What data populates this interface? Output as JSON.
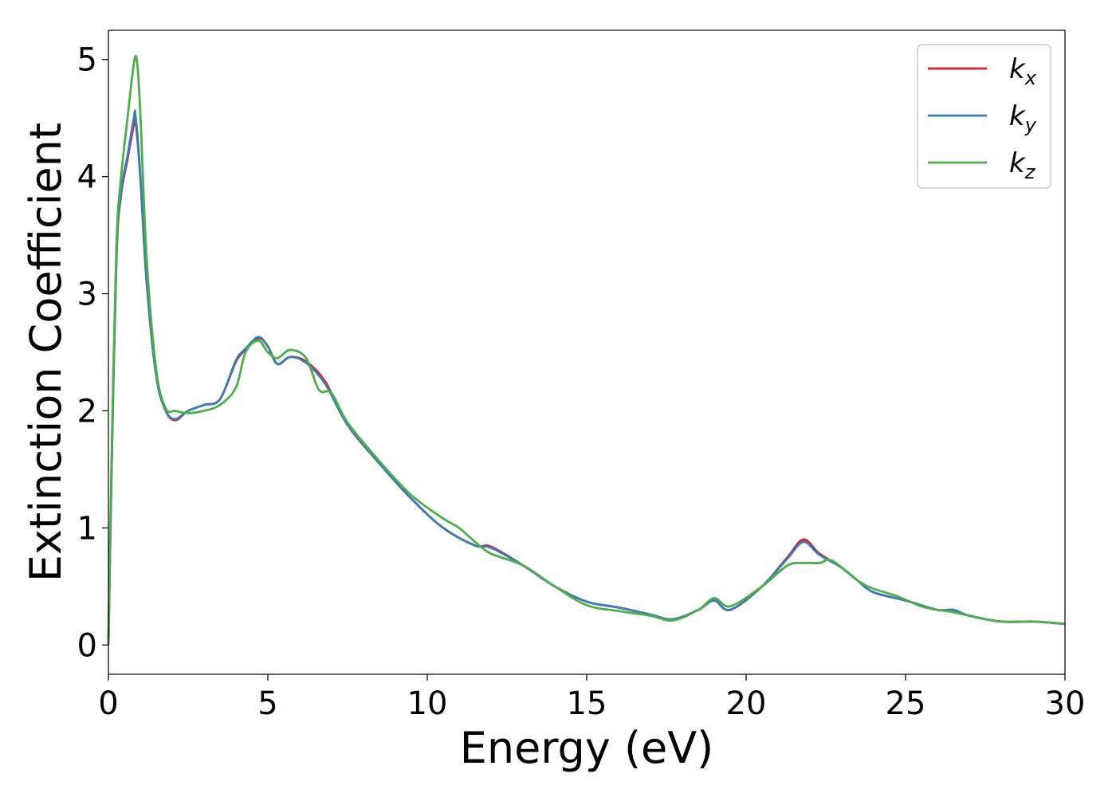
{
  "chart_data": {
    "type": "line",
    "xlabel": "Energy (eV)",
    "ylabel": "Extinction Coefficient",
    "xlim": [
      0,
      30
    ],
    "ylim": [
      -0.25,
      5.25
    ],
    "xticks": [
      0,
      5,
      10,
      15,
      20,
      25,
      30
    ],
    "yticks": [
      0,
      1,
      2,
      3,
      4,
      5
    ],
    "grid": false,
    "legend_position": "top-right",
    "series": [
      {
        "name": "k",
        "subscript": "x",
        "color": "#e41a1c",
        "x": [
          0,
          0.1,
          0.25,
          0.4,
          0.6,
          0.8,
          0.85,
          1.0,
          1.2,
          1.5,
          1.8,
          2.1,
          2.5,
          3.0,
          3.5,
          4.0,
          4.3,
          4.7,
          5.0,
          5.3,
          5.7,
          6.2,
          6.8,
          7.5,
          8.5,
          9.5,
          10.5,
          11.5,
          12.0,
          13.0,
          14.0,
          15.0,
          16.0,
          17.0,
          17.7,
          18.5,
          19.0,
          19.5,
          20.5,
          21.3,
          21.8,
          22.3,
          23.0,
          23.5,
          24.0,
          25.0,
          26.0,
          26.5,
          27.0,
          28.0,
          29.0,
          30.0
        ],
        "y": [
          0.0,
          1.5,
          3.3,
          3.85,
          4.15,
          4.45,
          4.48,
          4.0,
          3.1,
          2.3,
          2.0,
          1.92,
          2.0,
          2.05,
          2.1,
          2.42,
          2.52,
          2.62,
          2.55,
          2.4,
          2.46,
          2.42,
          2.25,
          1.88,
          1.55,
          1.25,
          1.0,
          0.85,
          0.84,
          0.68,
          0.5,
          0.37,
          0.32,
          0.26,
          0.22,
          0.3,
          0.38,
          0.3,
          0.5,
          0.75,
          0.9,
          0.78,
          0.66,
          0.55,
          0.45,
          0.38,
          0.3,
          0.3,
          0.25,
          0.2,
          0.2,
          0.18
        ]
      },
      {
        "name": "k",
        "subscript": "y",
        "color": "#377eb8",
        "x": [
          0,
          0.1,
          0.25,
          0.4,
          0.6,
          0.8,
          0.85,
          1.0,
          1.2,
          1.5,
          1.8,
          2.1,
          2.5,
          3.0,
          3.5,
          4.0,
          4.3,
          4.7,
          5.0,
          5.3,
          5.7,
          6.2,
          6.8,
          7.5,
          8.5,
          9.5,
          10.5,
          11.5,
          12.0,
          13.0,
          14.0,
          15.0,
          16.0,
          17.0,
          17.7,
          18.5,
          19.0,
          19.5,
          20.5,
          21.3,
          21.8,
          22.3,
          23.0,
          23.5,
          24.0,
          25.0,
          26.0,
          26.5,
          27.0,
          28.0,
          29.0,
          30.0
        ],
        "y": [
          0.0,
          1.5,
          3.3,
          3.87,
          4.18,
          4.5,
          4.52,
          4.02,
          3.1,
          2.3,
          2.0,
          1.93,
          2.0,
          2.05,
          2.1,
          2.43,
          2.53,
          2.63,
          2.55,
          2.4,
          2.46,
          2.41,
          2.23,
          1.88,
          1.55,
          1.25,
          1.0,
          0.85,
          0.83,
          0.68,
          0.5,
          0.37,
          0.32,
          0.26,
          0.22,
          0.3,
          0.38,
          0.3,
          0.5,
          0.74,
          0.88,
          0.77,
          0.66,
          0.55,
          0.45,
          0.38,
          0.3,
          0.3,
          0.25,
          0.2,
          0.2,
          0.18
        ]
      },
      {
        "name": "k",
        "subscript": "z",
        "color": "#4daf4a",
        "x": [
          0,
          0.1,
          0.25,
          0.4,
          0.6,
          0.8,
          0.9,
          1.0,
          1.2,
          1.5,
          1.8,
          2.1,
          2.5,
          3.0,
          3.5,
          4.0,
          4.3,
          4.7,
          5.0,
          5.3,
          5.7,
          6.2,
          6.6,
          7.0,
          7.5,
          8.5,
          9.5,
          10.5,
          11.0,
          11.5,
          12.0,
          13.0,
          14.0,
          15.0,
          16.0,
          17.0,
          17.7,
          18.5,
          19.0,
          19.5,
          20.5,
          21.3,
          21.8,
          22.3,
          22.7,
          23.5,
          24.0,
          24.7,
          25.5,
          26.0,
          26.5,
          27.0,
          28.0,
          29.0,
          30.0
        ],
        "y": [
          0.0,
          1.6,
          3.4,
          4.0,
          4.5,
          4.97,
          4.98,
          4.55,
          3.3,
          2.35,
          2.02,
          2.0,
          1.98,
          2.0,
          2.05,
          2.2,
          2.5,
          2.6,
          2.5,
          2.45,
          2.52,
          2.45,
          2.18,
          2.15,
          1.9,
          1.57,
          1.28,
          1.08,
          1.0,
          0.88,
          0.78,
          0.68,
          0.5,
          0.34,
          0.29,
          0.25,
          0.21,
          0.3,
          0.4,
          0.33,
          0.5,
          0.68,
          0.7,
          0.7,
          0.72,
          0.55,
          0.48,
          0.42,
          0.33,
          0.3,
          0.28,
          0.25,
          0.2,
          0.2,
          0.18
        ]
      }
    ]
  }
}
